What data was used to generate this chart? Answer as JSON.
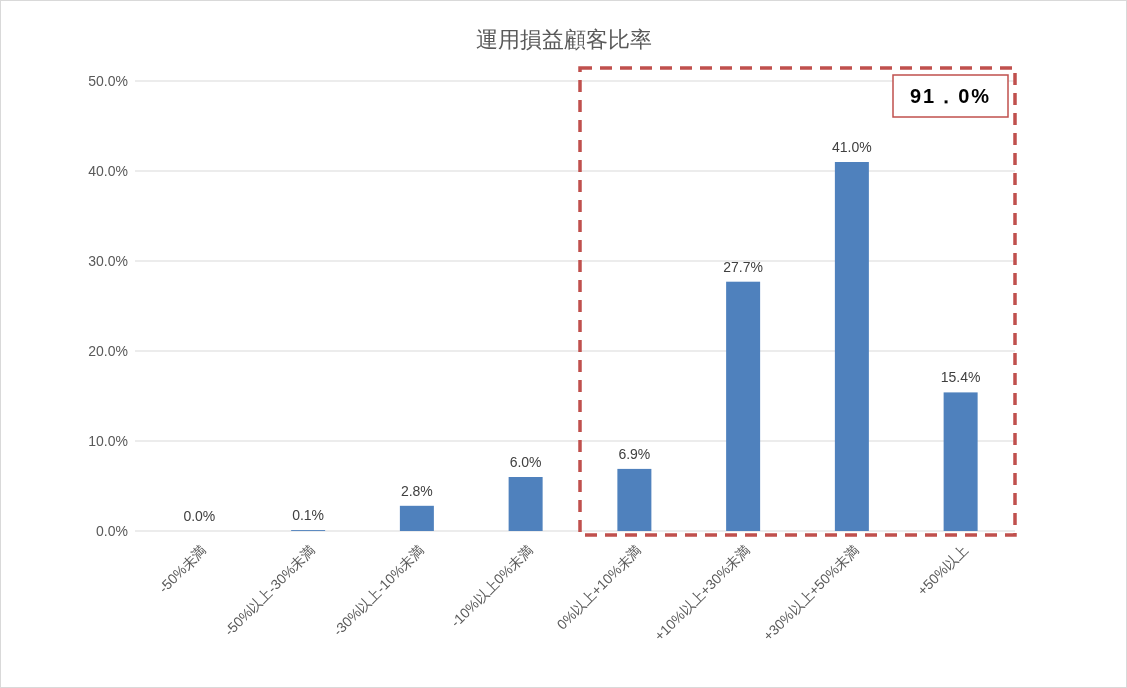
{
  "chart_data": {
    "type": "bar",
    "title": "運用損益顧客比率",
    "categories": [
      "-50%未満",
      "-50%以上-30%未満",
      "-30%以上-10%未満",
      "-10%以上0%未満",
      "0%以上+10%未満",
      "+10%以上+30%未満",
      "+30%以上+50%未満",
      "+50%以上"
    ],
    "values": [
      0.0,
      0.1,
      2.8,
      6.0,
      6.9,
      27.7,
      41.0,
      15.4
    ],
    "value_labels": [
      "0.0%",
      "0.1%",
      "2.8%",
      "6.0%",
      "6.9%",
      "27.7%",
      "41.0%",
      "15.4%"
    ],
    "color": "#4f81bd",
    "ylim": [
      0,
      50
    ],
    "yticks": [
      {
        "value": 0,
        "label": "0.0%"
      },
      {
        "value": 10,
        "label": "10.0%"
      },
      {
        "value": 20,
        "label": "20.0%"
      },
      {
        "value": 30,
        "label": "30.0%"
      },
      {
        "value": 40,
        "label": "40.0%"
      },
      {
        "value": 50,
        "label": "50.0%"
      }
    ],
    "grid": "y",
    "annotations": [
      "91．0%"
    ]
  }
}
